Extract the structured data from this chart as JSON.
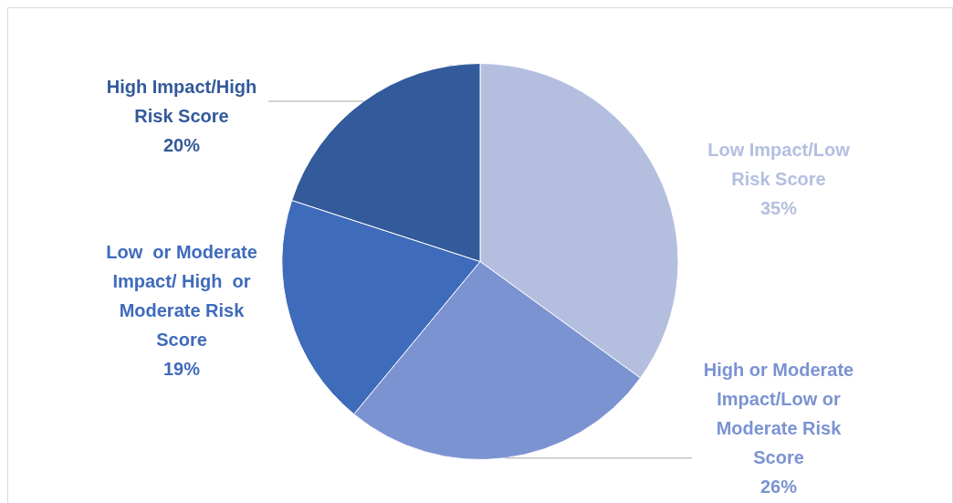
{
  "chart_data": {
    "type": "pie",
    "categories": [
      "Low Impact/Low Risk Score",
      "High or Moderate Impact/Low or Moderate Risk Score",
      "Low  or Moderate Impact/ High  or Moderate Risk Score",
      "High Impact/High Risk Score"
    ],
    "values": [
      35,
      26,
      19,
      20
    ],
    "colors": [
      "#b4bfe0",
      "#7b93d1",
      "#3f6bbb",
      "#335a9a"
    ],
    "value_labels": [
      "35%",
      "26%",
      "19%",
      "20%"
    ],
    "legend": false
  }
}
